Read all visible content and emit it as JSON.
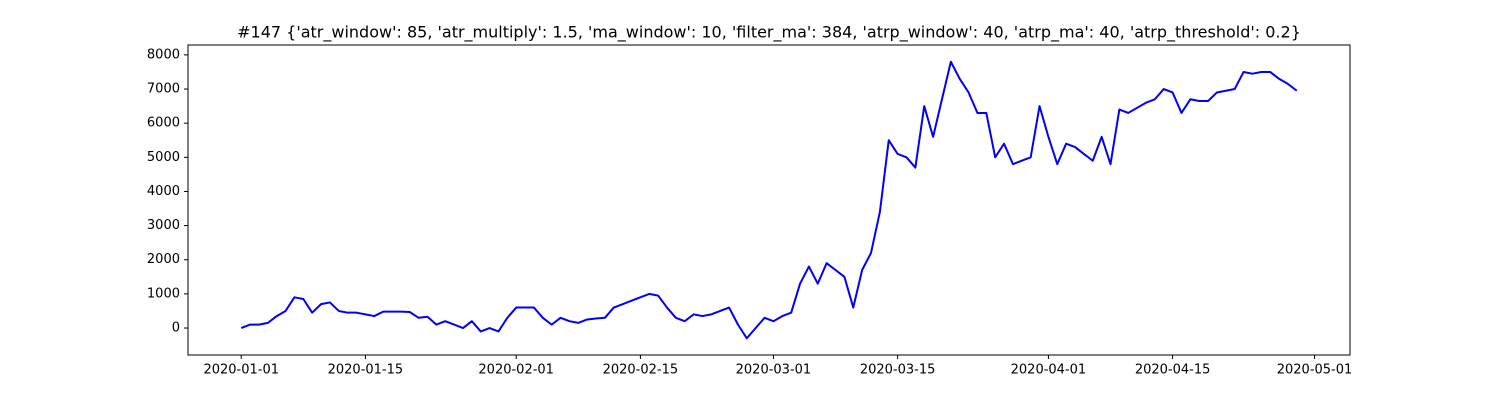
{
  "chart_data": {
    "type": "line",
    "title": "#147 {'atr_window': 85, 'atr_multiply': 1.5, 'ma_window': 10, 'filter_ma': 384, 'atrp_window': 40, 'atrp_ma': 40, 'atrp_threshold': 0.2}",
    "color": "#0000ff",
    "xlim": [
      "2019-12-26",
      "2020-05-05"
    ],
    "xticks": [
      "2020-01-01",
      "2020-01-15",
      "2020-02-01",
      "2020-02-15",
      "2020-03-01",
      "2020-03-15",
      "2020-04-01",
      "2020-04-15",
      "2020-05-01"
    ],
    "ylim": [
      -790,
      8290
    ],
    "yticks": [
      0,
      1000,
      2000,
      3000,
      4000,
      5000,
      6000,
      7000,
      8000
    ],
    "grid": false,
    "x": [
      "2020-01-01",
      "2020-01-02",
      "2020-01-03",
      "2020-01-04",
      "2020-01-05",
      "2020-01-06",
      "2020-01-07",
      "2020-01-08",
      "2020-01-09",
      "2020-01-10",
      "2020-01-11",
      "2020-01-12",
      "2020-01-13",
      "2020-01-14",
      "2020-01-15",
      "2020-01-16",
      "2020-01-17",
      "2020-01-18",
      "2020-01-19",
      "2020-01-20",
      "2020-01-21",
      "2020-01-22",
      "2020-01-23",
      "2020-01-24",
      "2020-01-25",
      "2020-01-26",
      "2020-01-27",
      "2020-01-28",
      "2020-01-29",
      "2020-01-30",
      "2020-01-31",
      "2020-02-01",
      "2020-02-02",
      "2020-02-03",
      "2020-02-04",
      "2020-02-05",
      "2020-02-06",
      "2020-02-07",
      "2020-02-08",
      "2020-02-09",
      "2020-02-10",
      "2020-02-11",
      "2020-02-12",
      "2020-02-13",
      "2020-02-14",
      "2020-02-15",
      "2020-02-16",
      "2020-02-17",
      "2020-02-18",
      "2020-02-19",
      "2020-02-20",
      "2020-02-21",
      "2020-02-22",
      "2020-02-23",
      "2020-02-24",
      "2020-02-25",
      "2020-02-26",
      "2020-02-27",
      "2020-02-28",
      "2020-02-29",
      "2020-03-01",
      "2020-03-02",
      "2020-03-03",
      "2020-03-04",
      "2020-03-05",
      "2020-03-06",
      "2020-03-07",
      "2020-03-08",
      "2020-03-09",
      "2020-03-10",
      "2020-03-11",
      "2020-03-12",
      "2020-03-13",
      "2020-03-14",
      "2020-03-15",
      "2020-03-16",
      "2020-03-17",
      "2020-03-18",
      "2020-03-19",
      "2020-03-20",
      "2020-03-21",
      "2020-03-22",
      "2020-03-23",
      "2020-03-24",
      "2020-03-25",
      "2020-03-26",
      "2020-03-27",
      "2020-03-28",
      "2020-03-29",
      "2020-03-30",
      "2020-03-31",
      "2020-04-01",
      "2020-04-02",
      "2020-04-03",
      "2020-04-04",
      "2020-04-05",
      "2020-04-06",
      "2020-04-07",
      "2020-04-08",
      "2020-04-09",
      "2020-04-10",
      "2020-04-11",
      "2020-04-12",
      "2020-04-13",
      "2020-04-14",
      "2020-04-15",
      "2020-04-16",
      "2020-04-17",
      "2020-04-18",
      "2020-04-19",
      "2020-04-20",
      "2020-04-21",
      "2020-04-22",
      "2020-04-23",
      "2020-04-24",
      "2020-04-25",
      "2020-04-26",
      "2020-04-27",
      "2020-04-28",
      "2020-04-29"
    ],
    "values": [
      0,
      100,
      100,
      150,
      350,
      500,
      900,
      850,
      450,
      700,
      750,
      500,
      450,
      450,
      400,
      350,
      480,
      480,
      480,
      470,
      300,
      330,
      100,
      200,
      100,
      0,
      200,
      -100,
      0,
      -100,
      300,
      600,
      600,
      600,
      300,
      100,
      300,
      200,
      150,
      250,
      280,
      300,
      600,
      700,
      800,
      900,
      1000,
      950,
      600,
      300,
      200,
      400,
      350,
      400,
      500,
      600,
      100,
      -300,
      0,
      300,
      200,
      350,
      450,
      1300,
      1800,
      1300,
      1900,
      1700,
      1500,
      600,
      1700,
      2200,
      3400,
      5500,
      5100,
      5000,
      4700,
      6500,
      5600,
      6700,
      7800,
      7300,
      6900,
      6300,
      6300,
      5000,
      5400,
      4800,
      4900,
      5000,
      6500,
      5600,
      4800,
      5400,
      5300,
      5100,
      4900,
      5600,
      4800,
      6400,
      6300,
      6450,
      6600,
      6700,
      7000,
      6900,
      6300,
      6700,
      6650,
      6650,
      6900,
      6950,
      7000,
      7500,
      7450,
      7500,
      7500,
      7300,
      7150,
      6950
    ]
  }
}
